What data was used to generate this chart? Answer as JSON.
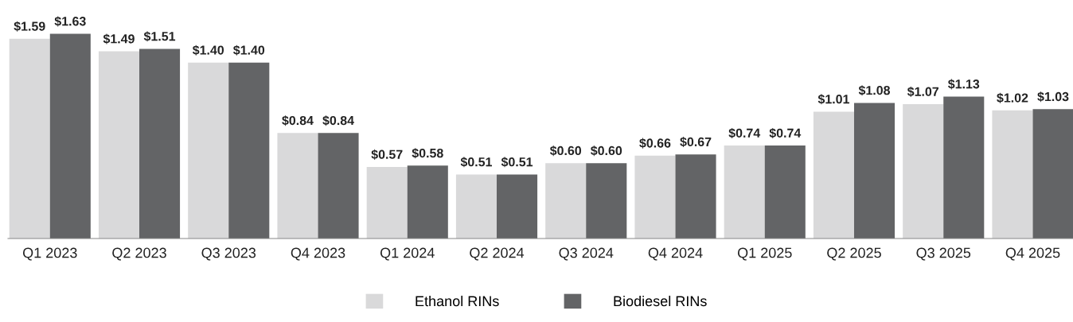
{
  "chart_data": {
    "type": "bar",
    "categories": [
      "Q1 2023",
      "Q2 2023",
      "Q3 2023",
      "Q4 2023",
      "Q1 2024",
      "Q2 2024",
      "Q3 2024",
      "Q4 2024",
      "Q1 2025",
      "Q2 2025",
      "Q3 2025",
      "Q4 2025"
    ],
    "series": [
      {
        "name": "Ethanol RINs",
        "color": "#d9d9da",
        "values": [
          1.59,
          1.49,
          1.4,
          0.84,
          0.57,
          0.51,
          0.6,
          0.66,
          0.74,
          1.01,
          1.07,
          1.02
        ],
        "value_labels": [
          "$1.59",
          "$1.49",
          "$1.40",
          "$0.84",
          "$0.57",
          "$0.51",
          "$0.60",
          "$0.66",
          "$0.74",
          "$1.01",
          "$1.07",
          "$1.02"
        ]
      },
      {
        "name": "Biodiesel RINs",
        "color": "#636466",
        "values": [
          1.63,
          1.51,
          1.4,
          0.84,
          0.58,
          0.51,
          0.6,
          0.67,
          0.74,
          1.08,
          1.13,
          1.03
        ],
        "value_labels": [
          "$1.63",
          "$1.51",
          "$1.40",
          "$0.84",
          "$0.58",
          "$0.51",
          "$0.60",
          "$0.67",
          "$0.74",
          "$1.08",
          "$1.13",
          "$1.03"
        ]
      }
    ],
    "legend": "bottom",
    "grid": false
  }
}
